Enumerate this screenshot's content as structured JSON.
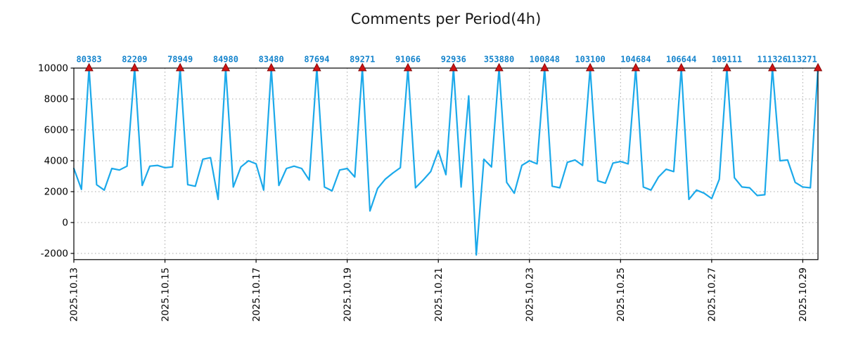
{
  "chart_data": {
    "type": "line",
    "title": "Comments per Period(4h)",
    "period_hours": 4,
    "x_axis": {
      "tick_labels": [
        "2025.10.13",
        "2025.10.15",
        "2025.10.17",
        "2025.10.19",
        "2025.10.21",
        "2025.10.23",
        "2025.10.25",
        "2025.10.27",
        "2025.10.29"
      ],
      "tick_day_offsets": [
        0,
        2,
        4,
        6,
        8,
        10,
        12,
        14,
        16
      ],
      "range_days": [
        0,
        16.3333
      ],
      "grid": true
    },
    "y_axis": {
      "ticks": [
        -2000,
        0,
        2000,
        4000,
        6000,
        8000,
        10000
      ],
      "range": [
        -2400,
        10000
      ],
      "clip_max": 10000,
      "grid": true
    },
    "series": {
      "name": "comments-per-4h-period",
      "start_day_offset": 0,
      "step_days": 0.1666667,
      "values": [
        3500,
        2150,
        10000,
        2450,
        2100,
        3500,
        3400,
        3650,
        10000,
        2400,
        3650,
        3700,
        3550,
        3600,
        10000,
        2450,
        2350,
        4100,
        4200,
        1500,
        10000,
        2300,
        3600,
        4000,
        3800,
        2100,
        10000,
        2400,
        3500,
        3650,
        3500,
        2750,
        10000,
        2300,
        2050,
        3400,
        3500,
        2950,
        10000,
        750,
        2200,
        2800,
        3200,
        3550,
        10000,
        2250,
        2750,
        3300,
        4650,
        3100,
        10000,
        2300,
        8200,
        -2100,
        4100,
        3600,
        10000,
        2600,
        1900,
        3700,
        4000,
        3800,
        10000,
        2350,
        2250,
        3900,
        4050,
        3700,
        10000,
        2700,
        2550,
        3850,
        3950,
        3800,
        10000,
        2300,
        2100,
        2950,
        3450,
        3300,
        10000,
        1500,
        2100,
        1900,
        1550,
        2800,
        10000,
        2900,
        2300,
        2250,
        1750,
        1800,
        10000,
        4000,
        4050,
        2600,
        2300,
        2250,
        10000
      ]
    },
    "peaks": [
      {
        "day_offset": 0.3333,
        "label": "80383"
      },
      {
        "day_offset": 1.3333,
        "label": "82209"
      },
      {
        "day_offset": 2.3333,
        "label": "78949"
      },
      {
        "day_offset": 3.3333,
        "label": "84980"
      },
      {
        "day_offset": 4.3333,
        "label": "83480"
      },
      {
        "day_offset": 5.3333,
        "label": "87694"
      },
      {
        "day_offset": 6.3333,
        "label": "89271"
      },
      {
        "day_offset": 7.3333,
        "label": "91066"
      },
      {
        "day_offset": 8.3333,
        "label": "92936"
      },
      {
        "day_offset": 9.3333,
        "label": "353880"
      },
      {
        "day_offset": 10.3333,
        "label": "100848"
      },
      {
        "day_offset": 11.3333,
        "label": "103100"
      },
      {
        "day_offset": 12.3333,
        "label": "104684"
      },
      {
        "day_offset": 13.3333,
        "label": "106644"
      },
      {
        "day_offset": 14.3333,
        "label": "109111"
      },
      {
        "day_offset": 15.3333,
        "label": "111326"
      },
      {
        "day_offset": 16.3333,
        "label": "113271"
      }
    ],
    "style": {
      "line_color": "#1ba9ea",
      "peak_label_color": "#1584cc",
      "marker_color": "#cc1414",
      "marker_edge_color": "#7a0000",
      "grid_color": "#a8a8a8",
      "axis_color": "#000000",
      "background": "#ffffff"
    }
  }
}
